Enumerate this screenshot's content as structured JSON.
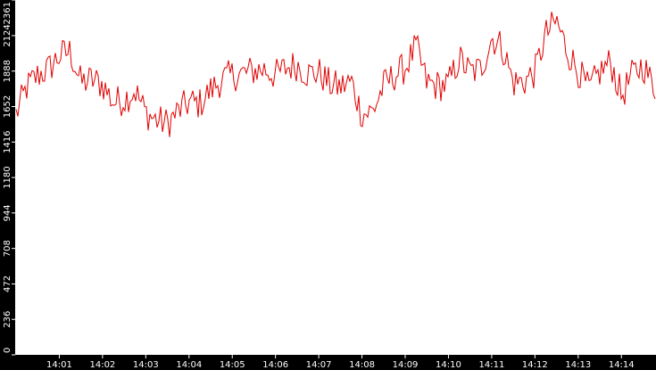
{
  "chart_data": {
    "type": "line",
    "title": "",
    "xlabel": "",
    "ylabel": "",
    "ylim": [
      0,
      2361
    ],
    "y_ticks": [
      0,
      236,
      472,
      708,
      944,
      1180,
      1416,
      1652,
      1888,
      2124,
      2361
    ],
    "y_tick_labels": [
      "0",
      "236",
      "472",
      "708",
      "944",
      "1180",
      "1416",
      "1652",
      "1888",
      "2124",
      "2361"
    ],
    "x_range_minutes": [
      0.0,
      14.8
    ],
    "x_tick_minutes": [
      1,
      2,
      3,
      4,
      5,
      6,
      7,
      8,
      9,
      10,
      11,
      12,
      13,
      14
    ],
    "x_tick_labels": [
      "14:01",
      "14:02",
      "14:03",
      "14:04",
      "14:05",
      "14:06",
      "14:07",
      "14:08",
      "14:09",
      "14:10",
      "14:11",
      "14:12",
      "14:13",
      "14:14"
    ],
    "grid": false,
    "legend": "none",
    "series": [
      {
        "color": "#e00000",
        "x_minutes": [
          0.0,
          0.25,
          0.5,
          0.75,
          1.0,
          1.25,
          1.5,
          1.75,
          2.0,
          2.25,
          2.5,
          2.75,
          3.0,
          3.25,
          3.5,
          3.75,
          4.0,
          4.25,
          4.5,
          4.75,
          5.0,
          5.25,
          5.5,
          5.75,
          6.0,
          6.25,
          6.5,
          6.75,
          7.0,
          7.25,
          7.5,
          7.75,
          8.0,
          8.25,
          8.5,
          8.75,
          9.0,
          9.25,
          9.5,
          9.75,
          10.0,
          10.25,
          10.5,
          10.75,
          11.0,
          11.25,
          11.5,
          11.75,
          12.0,
          12.25,
          12.5,
          12.75,
          13.0,
          13.25,
          13.5,
          13.75,
          14.0,
          14.25,
          14.5,
          14.75
        ],
        "values": [
          1600,
          1780,
          1860,
          1900,
          1990,
          2020,
          1810,
          1830,
          1800,
          1680,
          1700,
          1760,
          1610,
          1560,
          1540,
          1620,
          1680,
          1670,
          1760,
          1830,
          1860,
          1870,
          1890,
          1900,
          1860,
          1910,
          1930,
          1870,
          1880,
          1800,
          1780,
          1820,
          1600,
          1620,
          1790,
          1860,
          1910,
          2050,
          1810,
          1790,
          1800,
          1970,
          1880,
          1900,
          2110,
          2050,
          1810,
          1820,
          1880,
          2130,
          2220,
          2020,
          1890,
          1760,
          1880,
          1950,
          1720,
          1860,
          1930,
          1780
        ]
      }
    ]
  }
}
